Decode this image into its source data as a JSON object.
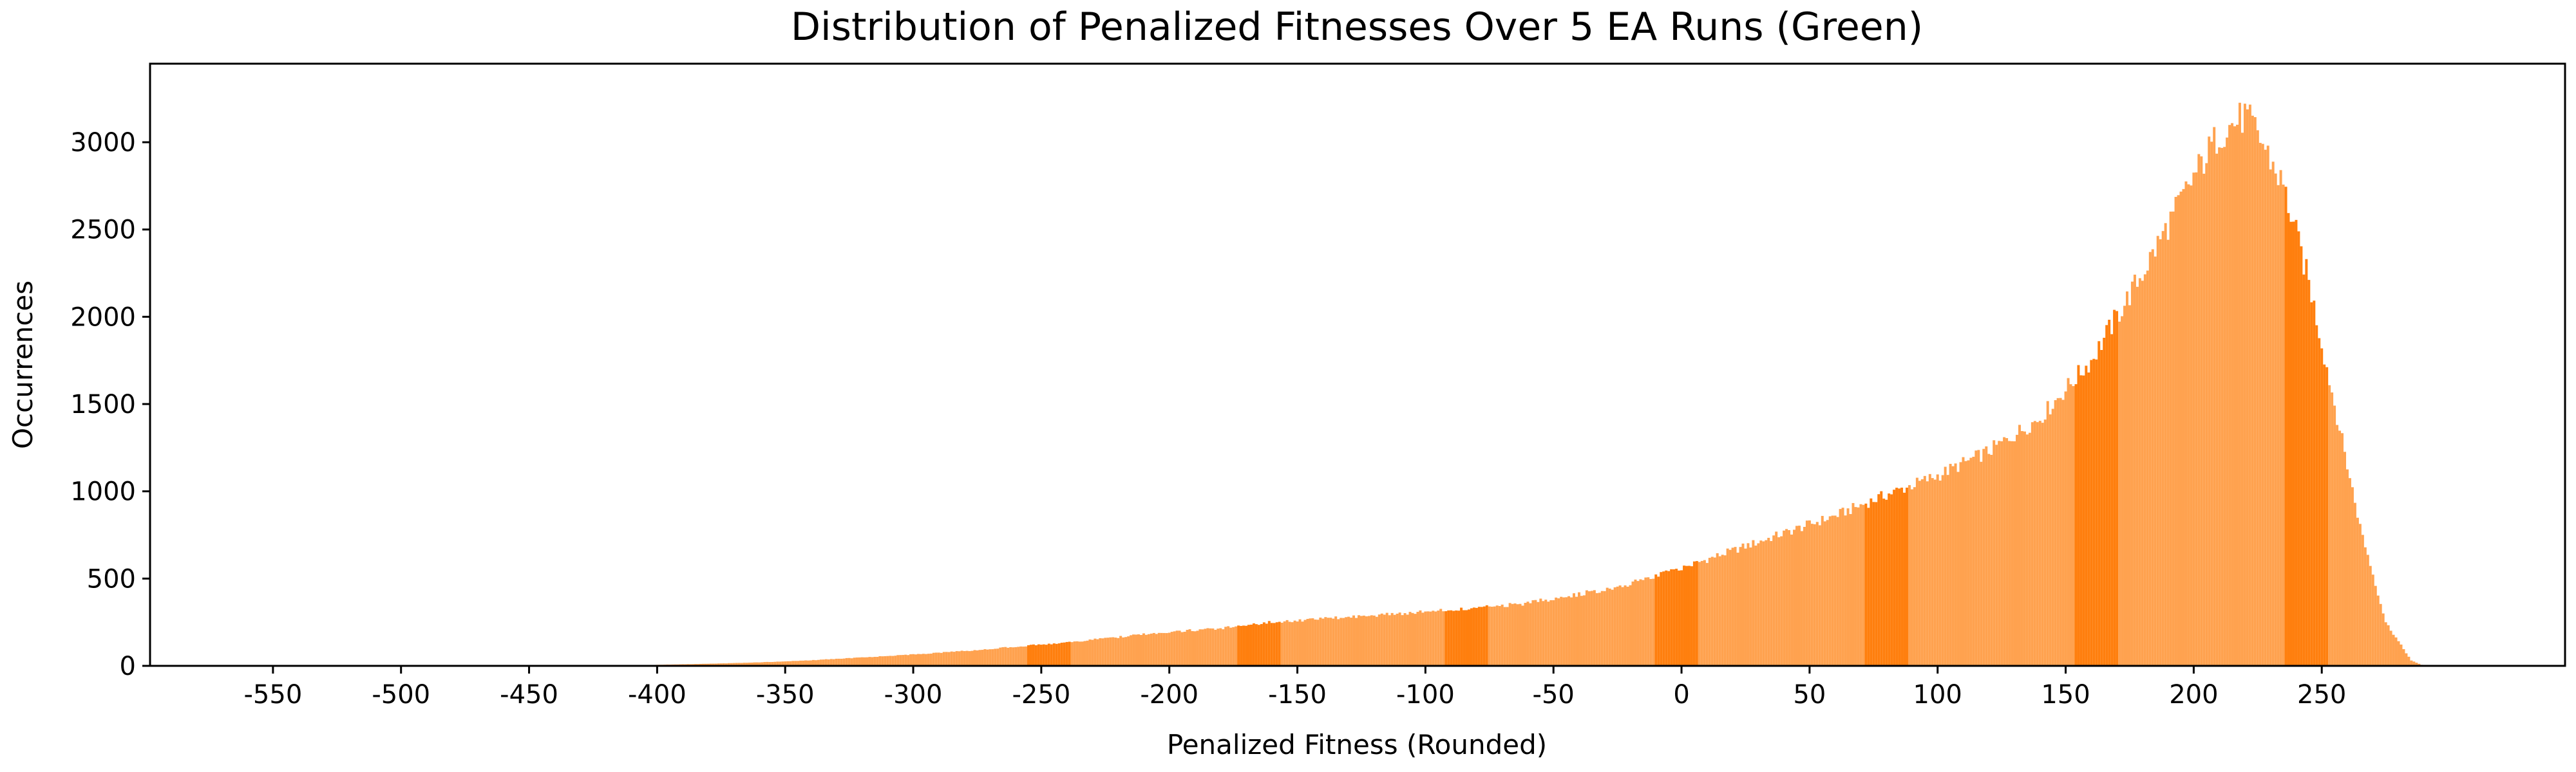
{
  "chart_data": {
    "type": "bar",
    "title": "Distribution of Penalized Fitnesses Over 5 EA Runs (Green)",
    "xlabel": "Penalized Fitness (Rounded)",
    "ylabel": "Occurrences",
    "xlim": [
      -598,
      345
    ],
    "ylim": [
      0,
      3450
    ],
    "x_ticks": [
      -550,
      -500,
      -450,
      -400,
      -350,
      -300,
      -250,
      -200,
      -150,
      -100,
      -50,
      0,
      50,
      100,
      150,
      200,
      250
    ],
    "y_ticks": [
      0,
      500,
      1000,
      1500,
      2000,
      2500,
      3000
    ],
    "grid": false,
    "bar_color": "#ffa24f",
    "highlight_color": "#ff7f0e",
    "highlight_ranges": [
      [
        -255,
        -239
      ],
      [
        -173,
        -157
      ],
      [
        -92,
        -76
      ],
      [
        -10,
        6
      ],
      [
        72,
        88
      ],
      [
        154,
        170
      ],
      [
        236,
        252
      ]
    ],
    "profile_points": [
      [
        -410,
        0
      ],
      [
        -400,
        6
      ],
      [
        -380,
        12
      ],
      [
        -360,
        20
      ],
      [
        -340,
        32
      ],
      [
        -320,
        48
      ],
      [
        -300,
        65
      ],
      [
        -280,
        85
      ],
      [
        -260,
        110
      ],
      [
        -240,
        135
      ],
      [
        -220,
        165
      ],
      [
        -200,
        195
      ],
      [
        -180,
        215
      ],
      [
        -160,
        250
      ],
      [
        -140,
        270
      ],
      [
        -120,
        290
      ],
      [
        -100,
        310
      ],
      [
        -80,
        330
      ],
      [
        -60,
        360
      ],
      [
        -40,
        410
      ],
      [
        -20,
        470
      ],
      [
        0,
        560
      ],
      [
        20,
        660
      ],
      [
        40,
        760
      ],
      [
        60,
        860
      ],
      [
        80,
        980
      ],
      [
        100,
        1090
      ],
      [
        120,
        1230
      ],
      [
        140,
        1420
      ],
      [
        160,
        1750
      ],
      [
        180,
        2250
      ],
      [
        200,
        2800
      ],
      [
        210,
        3050
      ],
      [
        220,
        3150
      ],
      [
        225,
        3050
      ],
      [
        235,
        2750
      ],
      [
        245,
        2200
      ],
      [
        255,
        1500
      ],
      [
        265,
        800
      ],
      [
        275,
        250
      ],
      [
        285,
        30
      ],
      [
        290,
        0
      ]
    ]
  }
}
